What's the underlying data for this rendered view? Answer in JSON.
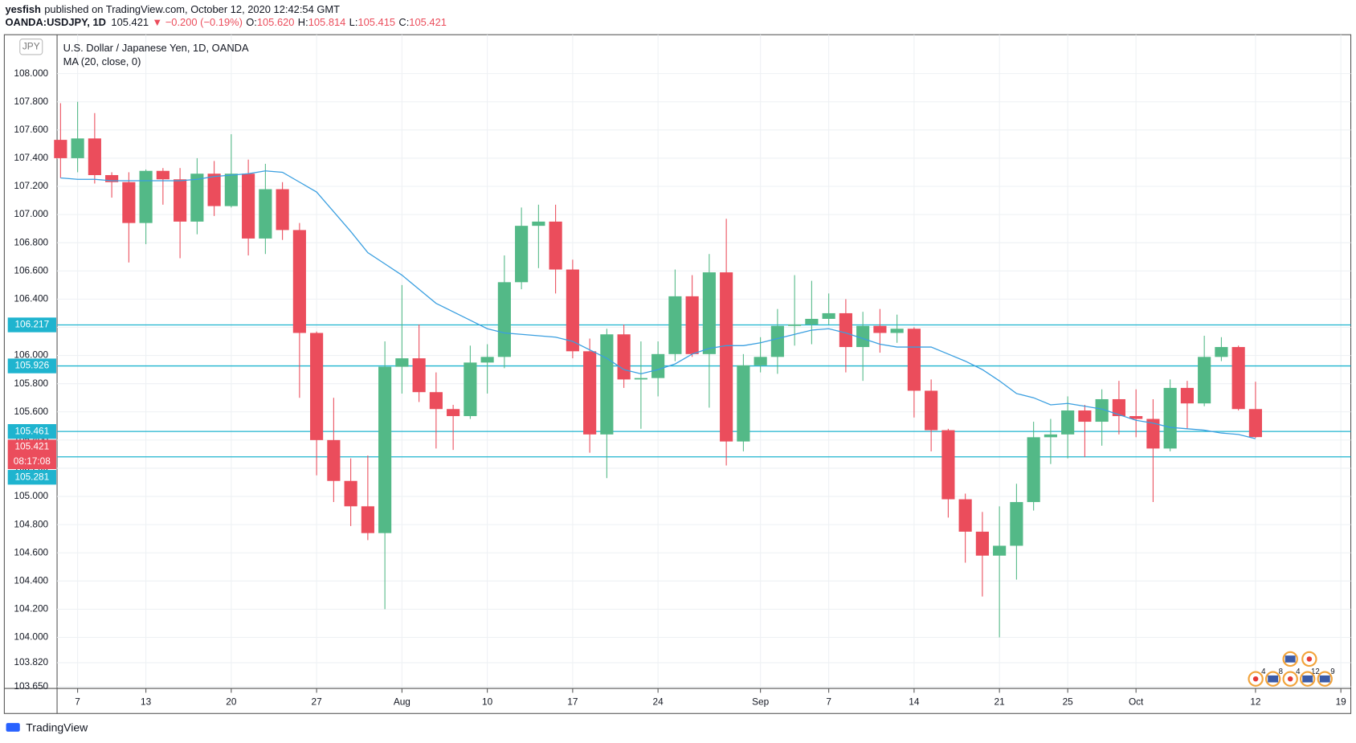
{
  "header": {
    "author": "yesfish",
    "published": "published on TradingView.com, October 12, 2020 12:42:54 GMT",
    "symbol": "OANDA:USDJPY, 1D",
    "last": "105.421",
    "change": "▼ −0.200 (−0.19%)",
    "o_label": "O:",
    "o": "105.620",
    "h_label": "H:",
    "h": "105.814",
    "l_label": "L:",
    "l": "105.415",
    "c_label": "C:",
    "c": "105.421"
  },
  "footer": {
    "brand": "TradingView"
  },
  "chart_data": {
    "type": "candlestick",
    "title": "U.S. Dollar / Japanese Yen, 1D, OANDA",
    "currency": "JPY",
    "up_color": "#53b987",
    "down_color": "#eb4d5c",
    "grid": true,
    "categories": [
      null,
      "7",
      null,
      null,
      null,
      "13",
      null,
      null,
      null,
      null,
      "20",
      null,
      null,
      null,
      null,
      "27",
      null,
      null,
      null,
      null,
      "Aug",
      null,
      null,
      null,
      null,
      "10",
      null,
      null,
      null,
      null,
      "17",
      null,
      null,
      null,
      null,
      "24",
      null,
      null,
      null,
      null,
      null,
      "Sep",
      null,
      null,
      null,
      "7",
      null,
      null,
      null,
      null,
      "14",
      null,
      null,
      null,
      null,
      "21",
      null,
      null,
      null,
      "25",
      null,
      null,
      null,
      "Oct",
      null,
      null,
      null,
      null,
      null,
      null,
      "12",
      null,
      null,
      null,
      null,
      "19"
    ],
    "open": [
      107.53,
      107.4,
      107.54,
      107.28,
      107.23,
      106.94,
      107.31,
      107.25,
      106.95,
      107.29,
      107.06,
      107.29,
      106.83,
      107.18,
      106.89,
      106.16,
      105.4,
      105.11,
      104.93,
      104.74,
      105.92,
      105.98,
      105.74,
      105.62,
      105.57,
      105.95,
      105.99,
      106.52,
      106.92,
      106.95,
      106.61,
      106.03,
      105.44,
      106.15,
      105.83,
      105.84,
      106.01,
      106.42,
      106.01,
      106.59,
      105.39,
      105.93,
      105.99,
      106.21,
      106.22,
      106.26,
      106.3,
      106.06,
      106.21,
      106.16,
      106.19,
      105.75,
      105.47,
      104.98,
      104.75,
      104.58,
      104.65,
      104.96,
      105.42,
      105.44,
      105.61,
      105.53,
      105.69,
      105.57,
      105.55,
      105.34,
      105.77,
      105.66,
      105.99,
      106.06,
      105.62,
      null,
      null,
      null,
      null,
      null
    ],
    "high": [
      107.79,
      107.8,
      107.72,
      107.3,
      107.3,
      107.32,
      107.33,
      107.33,
      107.4,
      107.38,
      107.57,
      107.39,
      107.36,
      107.23,
      106.94,
      106.17,
      105.7,
      105.27,
      105.29,
      106.1,
      106.5,
      106.22,
      105.88,
      105.65,
      106.07,
      106.08,
      106.71,
      107.05,
      107.07,
      107.07,
      106.68,
      106.12,
      106.19,
      106.22,
      106.1,
      106.1,
      106.61,
      106.57,
      106.72,
      106.97,
      106.01,
      106.13,
      106.33,
      106.57,
      106.53,
      106.44,
      106.4,
      106.31,
      106.33,
      106.29,
      106.2,
      105.83,
      105.48,
      105.02,
      104.89,
      104.93,
      105.09,
      105.53,
      105.55,
      105.71,
      105.65,
      105.76,
      105.82,
      105.76,
      105.69,
      105.83,
      105.82,
      106.14,
      106.13,
      106.07,
      105.814,
      null,
      null,
      null,
      null,
      null
    ],
    "low": [
      107.26,
      107.3,
      107.22,
      107.12,
      106.66,
      106.79,
      107.07,
      106.69,
      106.86,
      106.99,
      107.05,
      106.71,
      106.72,
      106.82,
      105.7,
      105.15,
      104.96,
      104.79,
      104.69,
      104.2,
      105.73,
      105.67,
      105.34,
      105.33,
      105.55,
      105.73,
      105.91,
      106.47,
      106.62,
      106.44,
      105.98,
      105.31,
      105.13,
      105.77,
      105.48,
      105.71,
      105.96,
      105.99,
      105.63,
      105.22,
      105.32,
      105.88,
      105.87,
      106.07,
      106.08,
      106.22,
      105.88,
      105.82,
      106.02,
      106.09,
      105.56,
      105.32,
      104.85,
      104.53,
      104.29,
      104.0,
      104.41,
      104.9,
      105.23,
      105.27,
      105.28,
      105.36,
      105.44,
      105.42,
      104.96,
      105.32,
      105.48,
      105.64,
      105.96,
      105.61,
      105.415,
      null,
      null,
      null,
      null,
      null
    ],
    "close": [
      107.4,
      107.54,
      107.28,
      107.23,
      106.94,
      107.31,
      107.25,
      106.95,
      107.29,
      107.06,
      107.29,
      106.83,
      107.18,
      106.89,
      106.16,
      105.4,
      105.11,
      104.93,
      104.74,
      105.92,
      105.98,
      105.74,
      105.62,
      105.57,
      105.95,
      105.99,
      106.52,
      106.92,
      106.95,
      106.61,
      106.03,
      105.44,
      106.15,
      105.83,
      105.84,
      106.01,
      106.42,
      106.01,
      106.59,
      105.39,
      105.93,
      105.99,
      106.21,
      106.22,
      106.26,
      106.3,
      106.06,
      106.21,
      106.16,
      106.19,
      105.75,
      105.47,
      104.98,
      104.75,
      104.58,
      104.65,
      104.96,
      105.42,
      105.44,
      105.61,
      105.53,
      105.69,
      105.57,
      105.55,
      105.34,
      105.77,
      105.66,
      105.99,
      106.06,
      105.62,
      105.421,
      null,
      null,
      null,
      null,
      null
    ],
    "ma": {
      "name": "MA (20, close, 0)",
      "color": "#3a9fe0",
      "values": [
        107.26,
        107.25,
        107.25,
        107.24,
        107.24,
        107.24,
        107.24,
        107.24,
        107.25,
        107.27,
        107.28,
        107.29,
        107.31,
        107.3,
        107.23,
        107.16,
        107.02,
        106.88,
        106.73,
        106.65,
        106.57,
        106.47,
        106.37,
        106.31,
        106.25,
        106.19,
        106.16,
        106.15,
        106.14,
        106.13,
        106.1,
        106.04,
        105.98,
        105.9,
        105.87,
        105.9,
        105.94,
        106.01,
        106.05,
        106.07,
        106.07,
        106.09,
        106.12,
        106.15,
        106.18,
        106.19,
        106.16,
        106.12,
        106.08,
        106.06,
        106.06,
        106.06,
        106.01,
        105.96,
        105.9,
        105.82,
        105.73,
        105.7,
        105.65,
        105.66,
        105.64,
        105.62,
        105.58,
        105.54,
        105.52,
        105.49,
        105.48,
        105.47,
        105.45,
        105.44,
        105.41,
        null,
        null,
        null,
        null,
        null
      ]
    },
    "hlines": [
      106.217,
      105.926,
      105.461,
      105.281
    ],
    "hline_color": "#1fb4cf",
    "countdown": "08:17:08",
    "events": [
      4,
      8,
      4,
      12,
      9
    ],
    "ylim": [
      103.644,
      108.27
    ],
    "yticks": [
      {
        "value": 103.65,
        "label": "103.650"
      },
      {
        "value": 103.82,
        "label": "103.820"
      },
      {
        "value": 104,
        "label": "104.000"
      },
      {
        "value": 104.2,
        "label": "104.200"
      },
      {
        "value": 104.4,
        "label": "104.400"
      },
      {
        "value": 104.6,
        "label": "104.600"
      },
      {
        "value": 104.8,
        "label": "104.800"
      },
      {
        "value": 105,
        "label": "105.000"
      },
      {
        "value": 105.2,
        "label": "105.200"
      },
      {
        "value": 105.4,
        "label": "105.400"
      },
      {
        "value": 105.6,
        "label": "105.600"
      },
      {
        "value": 105.8,
        "label": "105.800"
      },
      {
        "value": 106,
        "label": "106.000"
      },
      {
        "value": 106.2,
        "label": "106.200"
      },
      {
        "value": 106.4,
        "label": "106.400"
      },
      {
        "value": 106.6,
        "label": "106.600"
      },
      {
        "value": 106.8,
        "label": "106.800"
      },
      {
        "value": 107,
        "label": "107.000"
      },
      {
        "value": 107.2,
        "label": "107.200"
      },
      {
        "value": 107.4,
        "label": "107.400"
      },
      {
        "value": 107.6,
        "label": "107.600"
      },
      {
        "value": 107.8,
        "label": "107.800"
      },
      {
        "value": 108,
        "label": "108.000"
      }
    ]
  }
}
